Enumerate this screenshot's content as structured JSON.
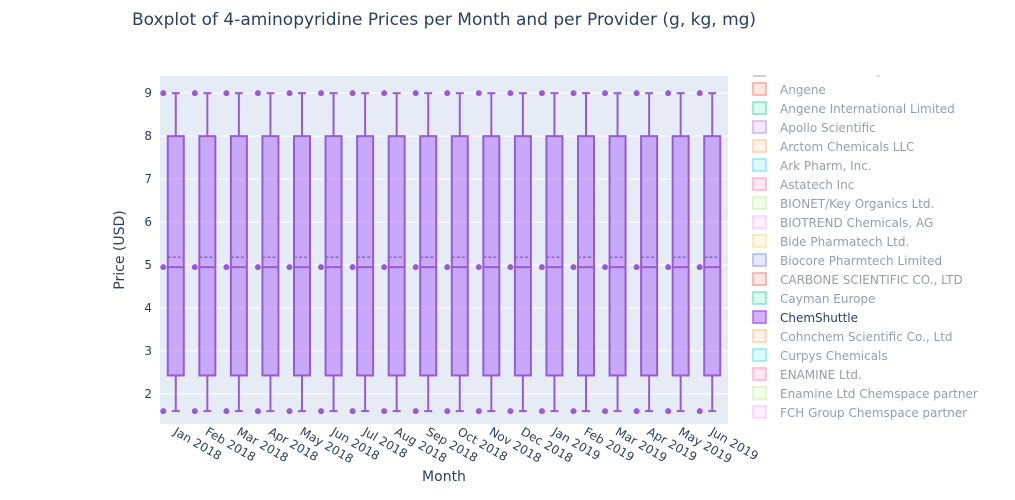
{
  "chart_data": {
    "type": "box",
    "title": "Boxplot of 4-aminopyridine Prices per Month and per Provider (g, kg, mg)",
    "xlabel": "Month",
    "ylabel": "Price (USD)",
    "ylim": [
      1.3,
      9.4
    ],
    "yticks": [
      2,
      3,
      4,
      5,
      6,
      7,
      8,
      9
    ],
    "grid": true,
    "legend_position": "right",
    "categories": [
      "Jan 2018",
      "Feb 2018",
      "Mar 2018",
      "Apr 2018",
      "May 2018",
      "Jun 2018",
      "Jul 2018",
      "Aug 2018",
      "Sep 2018",
      "Oct 2018",
      "Nov 2018",
      "Dec 2018",
      "Jan 2019",
      "Feb 2019",
      "Mar 2019",
      "Apr 2019",
      "May 2019",
      "Jun 2019"
    ],
    "box_stats": {
      "min": 1.6,
      "q1": 2.43,
      "median": 4.95,
      "mean": 5.18,
      "q3": 8.0,
      "max": 9.0,
      "points": [
        9.0,
        4.95,
        1.6
      ]
    },
    "series": [
      {
        "name": "",
        "color": "#9a5ad8",
        "visible": true
      },
      {
        "name": "Angene",
        "color": "#ef553b",
        "visible": false
      },
      {
        "name": "Angene International Limited",
        "color": "#00cc96",
        "visible": false
      },
      {
        "name": "Apollo Scientific",
        "color": "#ab63fa",
        "visible": false
      },
      {
        "name": "Arctom Chemicals LLC",
        "color": "#ffa15a",
        "visible": false
      },
      {
        "name": "Ark Pharm, Inc.",
        "color": "#19d3f3",
        "visible": false
      },
      {
        "name": "Astatech Inc",
        "color": "#ff6692",
        "visible": false
      },
      {
        "name": "BIONET/Key Organics Ltd.",
        "color": "#b6e880",
        "visible": false
      },
      {
        "name": "BIOTREND Chemicals, AG",
        "color": "#ff97ff",
        "visible": false
      },
      {
        "name": "Bide Pharmatech Ltd.",
        "color": "#fecb52",
        "visible": false
      },
      {
        "name": "Biocore Pharmtech Limited",
        "color": "#636efa",
        "visible": false
      },
      {
        "name": "CARBONE SCIENTIFIC CO., LTD",
        "color": "#ef553b",
        "visible": false
      },
      {
        "name": "Cayman Europe",
        "color": "#00cc96",
        "visible": false
      },
      {
        "name": "ChemShuttle",
        "color": "#ab63fa",
        "visible": true
      },
      {
        "name": "Cohnchem Scientific Co., Ltd",
        "color": "#ffa15a",
        "visible": false
      },
      {
        "name": "Curpys Chemicals",
        "color": "#19d3f3",
        "visible": false
      },
      {
        "name": "ENAMINE Ltd.",
        "color": "#ff6692",
        "visible": false
      },
      {
        "name": "Enamine Ltd Chemspace partner",
        "color": "#b6e880",
        "visible": false
      },
      {
        "name": "FCH Group Chemspace partner",
        "color": "#ff97ff",
        "visible": false
      }
    ]
  }
}
